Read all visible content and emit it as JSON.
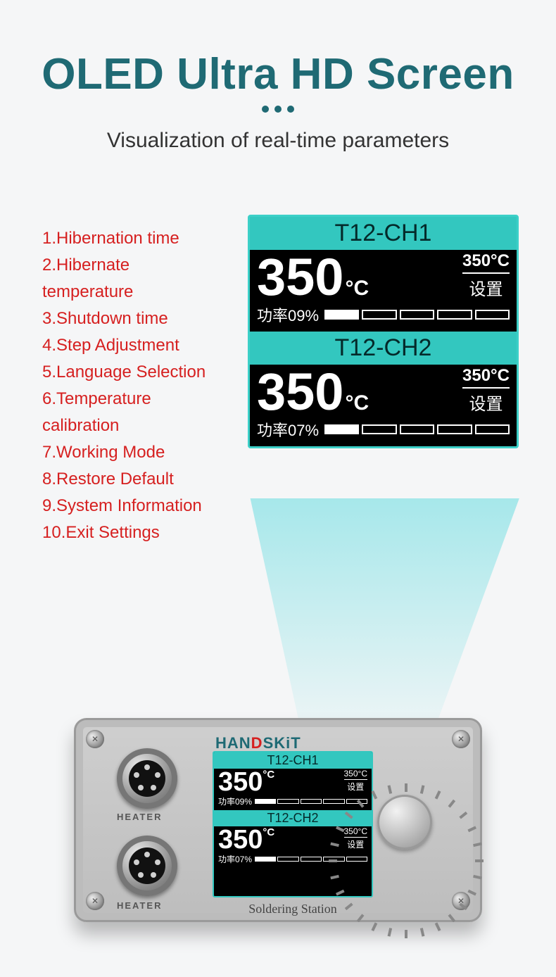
{
  "colors": {
    "accent": "#1f6a74",
    "feature": "#d62020",
    "oled_border": "#3cd0c8",
    "oled_header_bg": "#33c7bf",
    "oled_header_fg": "#042a2a",
    "page_bg": "#f5f6f7"
  },
  "header": {
    "title": "OLED Ultra HD Screen",
    "subtitle": "Visualization of real-time parameters",
    "title_fontsize": 62,
    "subtitle_fontsize": 30
  },
  "features": {
    "fontsize": 24,
    "items": [
      "1.Hibernation time",
      "2.Hibernate",
      "temperature",
      "3.Shutdown time",
      "4.Step Adjustment",
      "5.Language Selection",
      "6.Temperature",
      "calibration",
      "7.Working Mode",
      "8.Restore Default",
      "9.System Information",
      "10.Exit Settings"
    ]
  },
  "oled": {
    "ch1": {
      "header_label": "T12-CH1",
      "temp": "350",
      "unit": "°C",
      "set_temp": "350°C",
      "set_label": "设置",
      "power_label": "功率09%",
      "power_segments": 5,
      "power_on": 1
    },
    "ch2": {
      "header_label": "T12-CH2",
      "temp": "350",
      "unit": "°C",
      "set_temp": "350°C",
      "set_label": "设置",
      "power_label": "功率07%",
      "power_segments": 5,
      "power_on": 1
    }
  },
  "device": {
    "brand_prefix": "HAN",
    "brand_mid": "D",
    "brand_suffix": "SKiT",
    "heater_label": "HEATER",
    "station_label": "Soldering Station",
    "connector_pin_count": 5,
    "knob_tick_count": 28
  }
}
